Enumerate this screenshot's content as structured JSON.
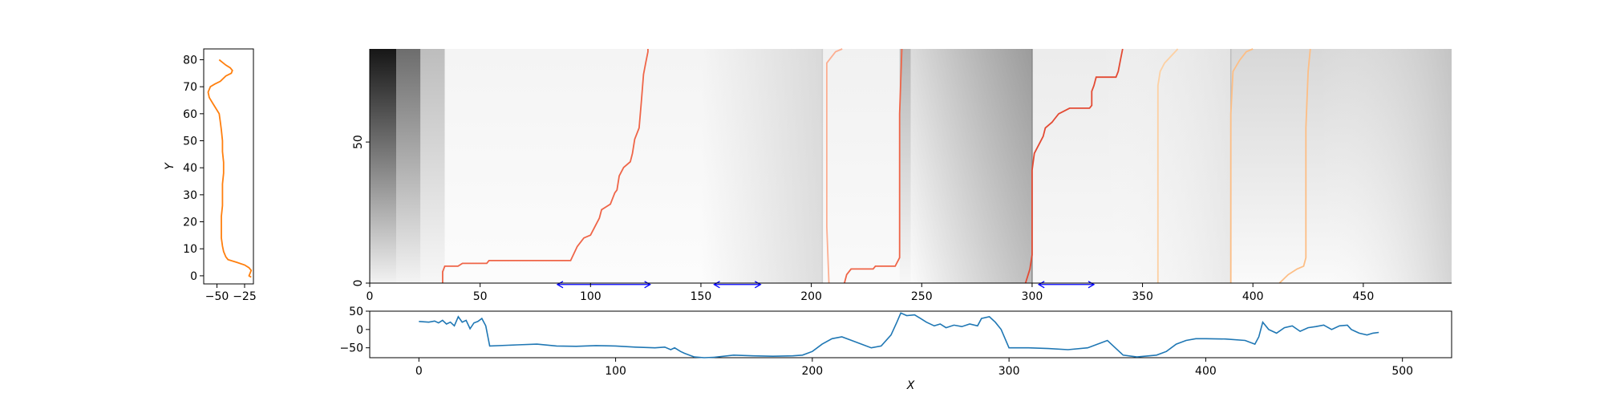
{
  "chart_data": [
    {
      "id": "left_profile",
      "type": "line",
      "ylabel": "Y",
      "xlabel": "",
      "xlim": [
        -62,
        -17
      ],
      "ylim": [
        -3,
        84
      ],
      "xticks": [
        -50,
        -25
      ],
      "xtick_labels": [
        "−50",
        "−25"
      ],
      "yticks": [
        0,
        10,
        20,
        30,
        40,
        50,
        60,
        70,
        80
      ],
      "color": "#ff7f0e",
      "points": [
        [
          -48,
          80
        ],
        [
          -45,
          79
        ],
        [
          -42,
          78
        ],
        [
          -38,
          77
        ],
        [
          -36,
          76
        ],
        [
          -37,
          75
        ],
        [
          -42,
          74
        ],
        [
          -47,
          72
        ],
        [
          -52,
          71
        ],
        [
          -56,
          70
        ],
        [
          -58,
          68
        ],
        [
          -57,
          66
        ],
        [
          -54,
          64
        ],
        [
          -51,
          62
        ],
        [
          -48,
          60
        ],
        [
          -47,
          57
        ],
        [
          -46,
          54
        ],
        [
          -45,
          50
        ],
        [
          -45,
          46
        ],
        [
          -44,
          42
        ],
        [
          -44,
          38
        ],
        [
          -45,
          34
        ],
        [
          -45,
          30
        ],
        [
          -45,
          26
        ],
        [
          -46,
          22
        ],
        [
          -46,
          18
        ],
        [
          -46,
          14
        ],
        [
          -45,
          11
        ],
        [
          -44,
          9
        ],
        [
          -42,
          7
        ],
        [
          -40,
          6
        ],
        [
          -32,
          5
        ],
        [
          -25,
          4
        ],
        [
          -21,
          3
        ],
        [
          -19,
          2
        ],
        [
          -20,
          1
        ],
        [
          -21,
          0
        ],
        [
          -19,
          -0.5
        ]
      ]
    },
    {
      "id": "main_heatmap",
      "type": "heatmap",
      "xlim": [
        0,
        490
      ],
      "ylim": [
        0,
        83
      ],
      "xticks": [
        0,
        50,
        100,
        150,
        200,
        250,
        300,
        350,
        400,
        450
      ],
      "yticks": [
        0,
        50
      ],
      "grayscale_description": "grayscale cost field with vertical band boundaries",
      "paths": [
        {
          "color": "#ef6548",
          "points": [
            [
              33,
              0
            ],
            [
              33,
              4
            ],
            [
              34,
              6
            ],
            [
              40,
              6
            ],
            [
              42,
              7
            ],
            [
              53,
              7
            ],
            [
              54,
              8
            ],
            [
              91,
              8
            ],
            [
              94,
              13
            ],
            [
              97,
              16
            ],
            [
              100,
              17
            ],
            [
              102,
              20
            ],
            [
              104,
              23
            ],
            [
              105,
              26
            ],
            [
              107,
              27
            ],
            [
              109,
              28
            ],
            [
              111,
              32
            ],
            [
              112,
              33
            ],
            [
              113,
              38
            ],
            [
              115,
              41
            ],
            [
              118,
              43
            ],
            [
              119,
              46
            ],
            [
              120,
              51
            ],
            [
              122,
              55
            ],
            [
              123,
              64
            ],
            [
              124,
              74
            ],
            [
              125,
              78
            ],
            [
              126,
              82
            ],
            [
              126,
              84
            ]
          ]
        },
        {
          "color": "#fcae91",
          "points": [
            [
              208,
              0
            ],
            [
              207,
              20
            ],
            [
              207,
              42
            ],
            [
              207,
              60
            ],
            [
              207,
              70
            ],
            [
              207,
              78
            ],
            [
              211,
              82
            ],
            [
              214,
              84
            ]
          ]
        },
        {
          "color": "#ef6548",
          "points": [
            [
              215,
              0
            ],
            [
              216,
              3
            ],
            [
              218,
              5
            ],
            [
              228,
              5
            ],
            [
              229,
              6
            ],
            [
              238,
              6
            ],
            [
              240,
              9
            ],
            [
              240,
              30
            ],
            [
              240,
              60
            ],
            [
              241,
              84
            ]
          ]
        },
        {
          "color": "#e34a33",
          "points": [
            [
              297,
              0
            ],
            [
              299,
              5
            ],
            [
              300,
              10
            ],
            [
              300,
              25
            ],
            [
              300,
              40
            ],
            [
              301,
              46
            ],
            [
              305,
              52
            ],
            [
              306,
              55
            ],
            [
              309,
              57
            ],
            [
              310,
              58
            ],
            [
              312,
              60
            ],
            [
              317,
              62
            ],
            [
              326,
              62
            ],
            [
              327,
              63
            ],
            [
              327,
              68
            ],
            [
              328,
              70
            ],
            [
              329,
              73
            ],
            [
              338,
              73
            ],
            [
              339,
              75
            ],
            [
              340,
              79
            ],
            [
              341,
              84
            ]
          ]
        },
        {
          "color": "#fdd0a2",
          "points": [
            [
              357,
              0
            ],
            [
              357,
              20
            ],
            [
              357,
              40
            ],
            [
              357,
              60
            ],
            [
              357,
              70
            ],
            [
              358,
              75
            ],
            [
              360,
              78
            ],
            [
              366,
              84
            ]
          ]
        },
        {
          "color": "#fdbe85",
          "points": [
            [
              390,
              0
            ],
            [
              390,
              30
            ],
            [
              390,
              60
            ],
            [
              391,
              75
            ],
            [
              394,
              79
            ],
            [
              397,
              82
            ],
            [
              400,
              84
            ]
          ]
        },
        {
          "color": "#fdbe85",
          "points": [
            [
              412,
              0
            ],
            [
              416,
              3
            ],
            [
              420,
              5
            ],
            [
              423,
              6
            ],
            [
              424,
              9
            ],
            [
              424,
              30
            ],
            [
              424,
              55
            ],
            [
              425,
              75
            ],
            [
              426,
              84
            ]
          ]
        }
      ],
      "annotations": [
        {
          "type": "double_arrow",
          "color": "#0000ff",
          "x_start": 85,
          "x_end": 127,
          "y": -0.5
        },
        {
          "type": "double_arrow",
          "color": "#0000ff",
          "x_start": 156,
          "x_end": 177,
          "y": -0.5
        },
        {
          "type": "double_arrow",
          "color": "#0000ff",
          "x_start": 303,
          "x_end": 328,
          "y": -0.5
        }
      ]
    },
    {
      "id": "bottom_signal",
      "type": "line",
      "xlabel": "X",
      "ylabel": "",
      "xlim": [
        -25,
        525
      ],
      "ylim": [
        -77,
        50
      ],
      "xticks": [
        0,
        100,
        200,
        300,
        400,
        500
      ],
      "yticks": [
        50,
        0,
        -50
      ],
      "ytick_labels": [
        "50",
        "0",
        "−50"
      ],
      "color": "#1f77b4",
      "points": [
        [
          0,
          22
        ],
        [
          5,
          20
        ],
        [
          8,
          23
        ],
        [
          10,
          18
        ],
        [
          12,
          25
        ],
        [
          14,
          15
        ],
        [
          16,
          20
        ],
        [
          18,
          10
        ],
        [
          20,
          35
        ],
        [
          22,
          20
        ],
        [
          24,
          25
        ],
        [
          26,
          2
        ],
        [
          28,
          18
        ],
        [
          30,
          22
        ],
        [
          32,
          30
        ],
        [
          34,
          10
        ],
        [
          36,
          -45
        ],
        [
          50,
          -42
        ],
        [
          60,
          -40
        ],
        [
          70,
          -45
        ],
        [
          80,
          -46
        ],
        [
          90,
          -44
        ],
        [
          100,
          -45
        ],
        [
          110,
          -48
        ],
        [
          120,
          -50
        ],
        [
          125,
          -48
        ],
        [
          128,
          -55
        ],
        [
          130,
          -50
        ],
        [
          133,
          -60
        ],
        [
          135,
          -65
        ],
        [
          140,
          -75
        ],
        [
          145,
          -77
        ],
        [
          150,
          -76
        ],
        [
          160,
          -70
        ],
        [
          170,
          -72
        ],
        [
          180,
          -73
        ],
        [
          190,
          -72
        ],
        [
          195,
          -70
        ],
        [
          200,
          -60
        ],
        [
          205,
          -40
        ],
        [
          210,
          -25
        ],
        [
          215,
          -20
        ],
        [
          220,
          -30
        ],
        [
          225,
          -40
        ],
        [
          230,
          -50
        ],
        [
          235,
          -45
        ],
        [
          240,
          -15
        ],
        [
          243,
          20
        ],
        [
          245,
          45
        ],
        [
          248,
          38
        ],
        [
          252,
          40
        ],
        [
          255,
          30
        ],
        [
          258,
          20
        ],
        [
          262,
          10
        ],
        [
          265,
          15
        ],
        [
          268,
          5
        ],
        [
          272,
          12
        ],
        [
          276,
          8
        ],
        [
          280,
          15
        ],
        [
          284,
          10
        ],
        [
          286,
          30
        ],
        [
          290,
          35
        ],
        [
          293,
          20
        ],
        [
          296,
          0
        ],
        [
          300,
          -50
        ],
        [
          310,
          -50
        ],
        [
          320,
          -52
        ],
        [
          330,
          -55
        ],
        [
          340,
          -50
        ],
        [
          345,
          -40
        ],
        [
          350,
          -30
        ],
        [
          354,
          -50
        ],
        [
          358,
          -70
        ],
        [
          365,
          -75
        ],
        [
          375,
          -70
        ],
        [
          380,
          -60
        ],
        [
          385,
          -40
        ],
        [
          390,
          -30
        ],
        [
          395,
          -25
        ],
        [
          400,
          -25
        ],
        [
          410,
          -26
        ],
        [
          420,
          -30
        ],
        [
          425,
          -40
        ],
        [
          427,
          -20
        ],
        [
          429,
          20
        ],
        [
          432,
          0
        ],
        [
          436,
          -10
        ],
        [
          440,
          5
        ],
        [
          444,
          10
        ],
        [
          448,
          -5
        ],
        [
          452,
          5
        ],
        [
          456,
          8
        ],
        [
          460,
          12
        ],
        [
          464,
          0
        ],
        [
          468,
          10
        ],
        [
          472,
          12
        ],
        [
          474,
          0
        ],
        [
          476,
          -5
        ],
        [
          478,
          -10
        ],
        [
          482,
          -15
        ],
        [
          485,
          -10
        ],
        [
          488,
          -8
        ]
      ]
    }
  ]
}
